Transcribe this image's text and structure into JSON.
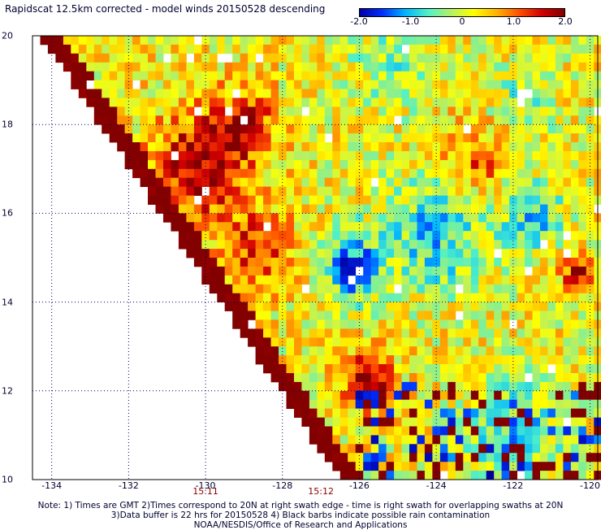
{
  "title": "Rapidscat 12.5km corrected - model winds 20150528 descending",
  "colorbar": {
    "ticks": [
      "-2.0",
      "-1.0",
      "0",
      "1.0",
      "2.0"
    ],
    "tick_values": [
      -2.0,
      -1.0,
      0,
      1.0,
      2.0
    ],
    "colors": [
      "#0000a0",
      "#0030ff",
      "#00b4ff",
      "#50f0c8",
      "#b4f064",
      "#ffff00",
      "#ffb400",
      "#ff5000",
      "#d20000",
      "#820000"
    ]
  },
  "axes": {
    "lat_labels": [
      "20",
      "18",
      "16",
      "14",
      "12",
      "10"
    ],
    "lat_values": [
      20,
      18,
      16,
      14,
      12,
      10
    ],
    "lon_labels": [
      "-134",
      "-132",
      "-130",
      "-128",
      "-126",
      "-124",
      "-122",
      "-120"
    ],
    "lon_values": [
      -134,
      -132,
      -130,
      -128,
      -126,
      -124,
      -122,
      -120
    ],
    "time_labels": [
      "15:11",
      "15:12"
    ],
    "time_lons": [
      -130,
      -127
    ]
  },
  "notes": {
    "line1": "Note: 1) Times are GMT 2)Times correspond to 20N at right swath edge - time is right swath for overlapping swaths at 20N",
    "line2": "3)Data buffer is 22 hrs for 20150528 4) Black barbs indicate possible rain contamination",
    "line3": "NOAA/NESDIS/Office of Research and Applications"
  },
  "chart_data": {
    "type": "heatmap",
    "title": "Rapidscat 12.5km corrected - model winds 20150528 descending",
    "xlabel": "",
    "ylabel": "",
    "xlim": [
      -134.5,
      -119.8
    ],
    "ylim": [
      10,
      20
    ],
    "value_range": [
      -2.0,
      2.0
    ],
    "grid": true,
    "cell_deg": 0.2,
    "regions": [
      {
        "lon": -130.2,
        "lat": 17.0,
        "value": 1.6,
        "radius": 1.2
      },
      {
        "lon": -129.0,
        "lat": 18.0,
        "value": 1.3,
        "radius": 0.8
      },
      {
        "lon": -128.6,
        "lat": 15.2,
        "value": 1.1,
        "radius": 0.9
      },
      {
        "lon": -123.0,
        "lat": 17.2,
        "value": 0.9,
        "radius": 0.9
      },
      {
        "lon": -126.2,
        "lat": 14.8,
        "value": -1.6,
        "radius": 0.8
      },
      {
        "lon": -124.0,
        "lat": 15.5,
        "value": -1.2,
        "radius": 1.2
      },
      {
        "lon": -121.5,
        "lat": 16.0,
        "value": -1.1,
        "radius": 0.8
      },
      {
        "lon": -125.0,
        "lat": 19.5,
        "value": -0.6,
        "radius": 1.2
      },
      {
        "lon": -121.8,
        "lat": 18.5,
        "value": -0.5,
        "radius": 0.9
      },
      {
        "lon": -120.3,
        "lat": 14.7,
        "value": 1.6,
        "radius": 0.4
      },
      {
        "lon": -125.8,
        "lat": 12.2,
        "value": 2.0,
        "radius": 0.6
      },
      {
        "lon": -122.0,
        "lat": 11.0,
        "value": -1.0,
        "radius": 1.2
      }
    ]
  }
}
